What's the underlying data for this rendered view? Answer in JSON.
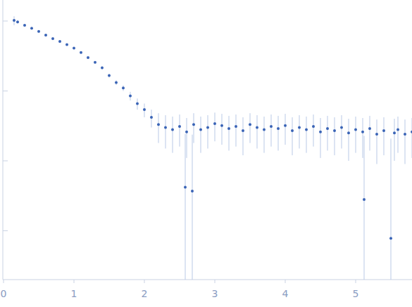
{
  "chart_data": {
    "type": "scatter",
    "log": "y",
    "tick_labels": "x",
    "grid": false,
    "color": "#3a64b6",
    "error_color": "#b9c9e6",
    "marker": "circle",
    "xlim": [
      0,
      5.8
    ],
    "xticks": [
      0,
      1,
      2,
      3,
      4,
      5
    ],
    "ylim": [
      0.0002,
      2
    ],
    "yticks": [
      1,
      0.1,
      0.01,
      0.001
    ],
    "x": [
      0.15,
      0.2,
      0.3,
      0.4,
      0.5,
      0.6,
      0.7,
      0.8,
      0.9,
      1.0,
      1.1,
      1.2,
      1.3,
      1.4,
      1.5,
      1.6,
      1.7,
      1.8,
      1.9,
      2.0,
      2.1,
      2.2,
      2.3,
      2.4,
      2.5,
      2.58,
      2.6,
      2.68,
      2.7,
      2.8,
      2.9,
      3.0,
      3.1,
      3.2,
      3.3,
      3.4,
      3.5,
      3.6,
      3.7,
      3.8,
      3.9,
      4.0,
      4.1,
      4.2,
      4.3,
      4.4,
      4.5,
      4.6,
      4.7,
      4.8,
      4.9,
      5.0,
      5.1,
      5.12,
      5.2,
      5.3,
      5.4,
      5.5,
      5.55,
      5.6,
      5.7,
      5.8
    ],
    "values": [
      1.02,
      0.97,
      0.87,
      0.79,
      0.71,
      0.63,
      0.56,
      0.51,
      0.46,
      0.41,
      0.355,
      0.3,
      0.257,
      0.214,
      0.166,
      0.132,
      0.11,
      0.085,
      0.066,
      0.054,
      0.042,
      0.033,
      0.03,
      0.028,
      0.031,
      0.0042,
      0.026,
      0.0037,
      0.033,
      0.028,
      0.03,
      0.034,
      0.032,
      0.029,
      0.031,
      0.027,
      0.033,
      0.03,
      0.028,
      0.031,
      0.029,
      0.032,
      0.027,
      0.03,
      0.028,
      0.031,
      0.026,
      0.029,
      0.027,
      0.03,
      0.025,
      0.028,
      0.026,
      0.0028,
      0.029,
      0.024,
      0.027,
      0.00078,
      0.025,
      0.028,
      0.024,
      0.026
    ],
    "errors": [
      0.15,
      0.05,
      0.02,
      0.02,
      0.02,
      0.02,
      0.015,
      0.015,
      0.012,
      0.012,
      0.01,
      0.01,
      0.01,
      0.01,
      0.01,
      0.01,
      0.01,
      0.012,
      0.012,
      0.012,
      0.012,
      0.015,
      0.015,
      0.015,
      0.015,
      0.02,
      0.015,
      0.02,
      0.015,
      0.015,
      0.015,
      0.015,
      0.015,
      0.015,
      0.015,
      0.015,
      0.015,
      0.015,
      0.015,
      0.015,
      0.015,
      0.015,
      0.015,
      0.015,
      0.015,
      0.015,
      0.015,
      0.015,
      0.015,
      0.015,
      0.015,
      0.015,
      0.015,
      0.02,
      0.015,
      0.015,
      0.015,
      0.02,
      0.015,
      0.015,
      0.015,
      0.015
    ]
  }
}
